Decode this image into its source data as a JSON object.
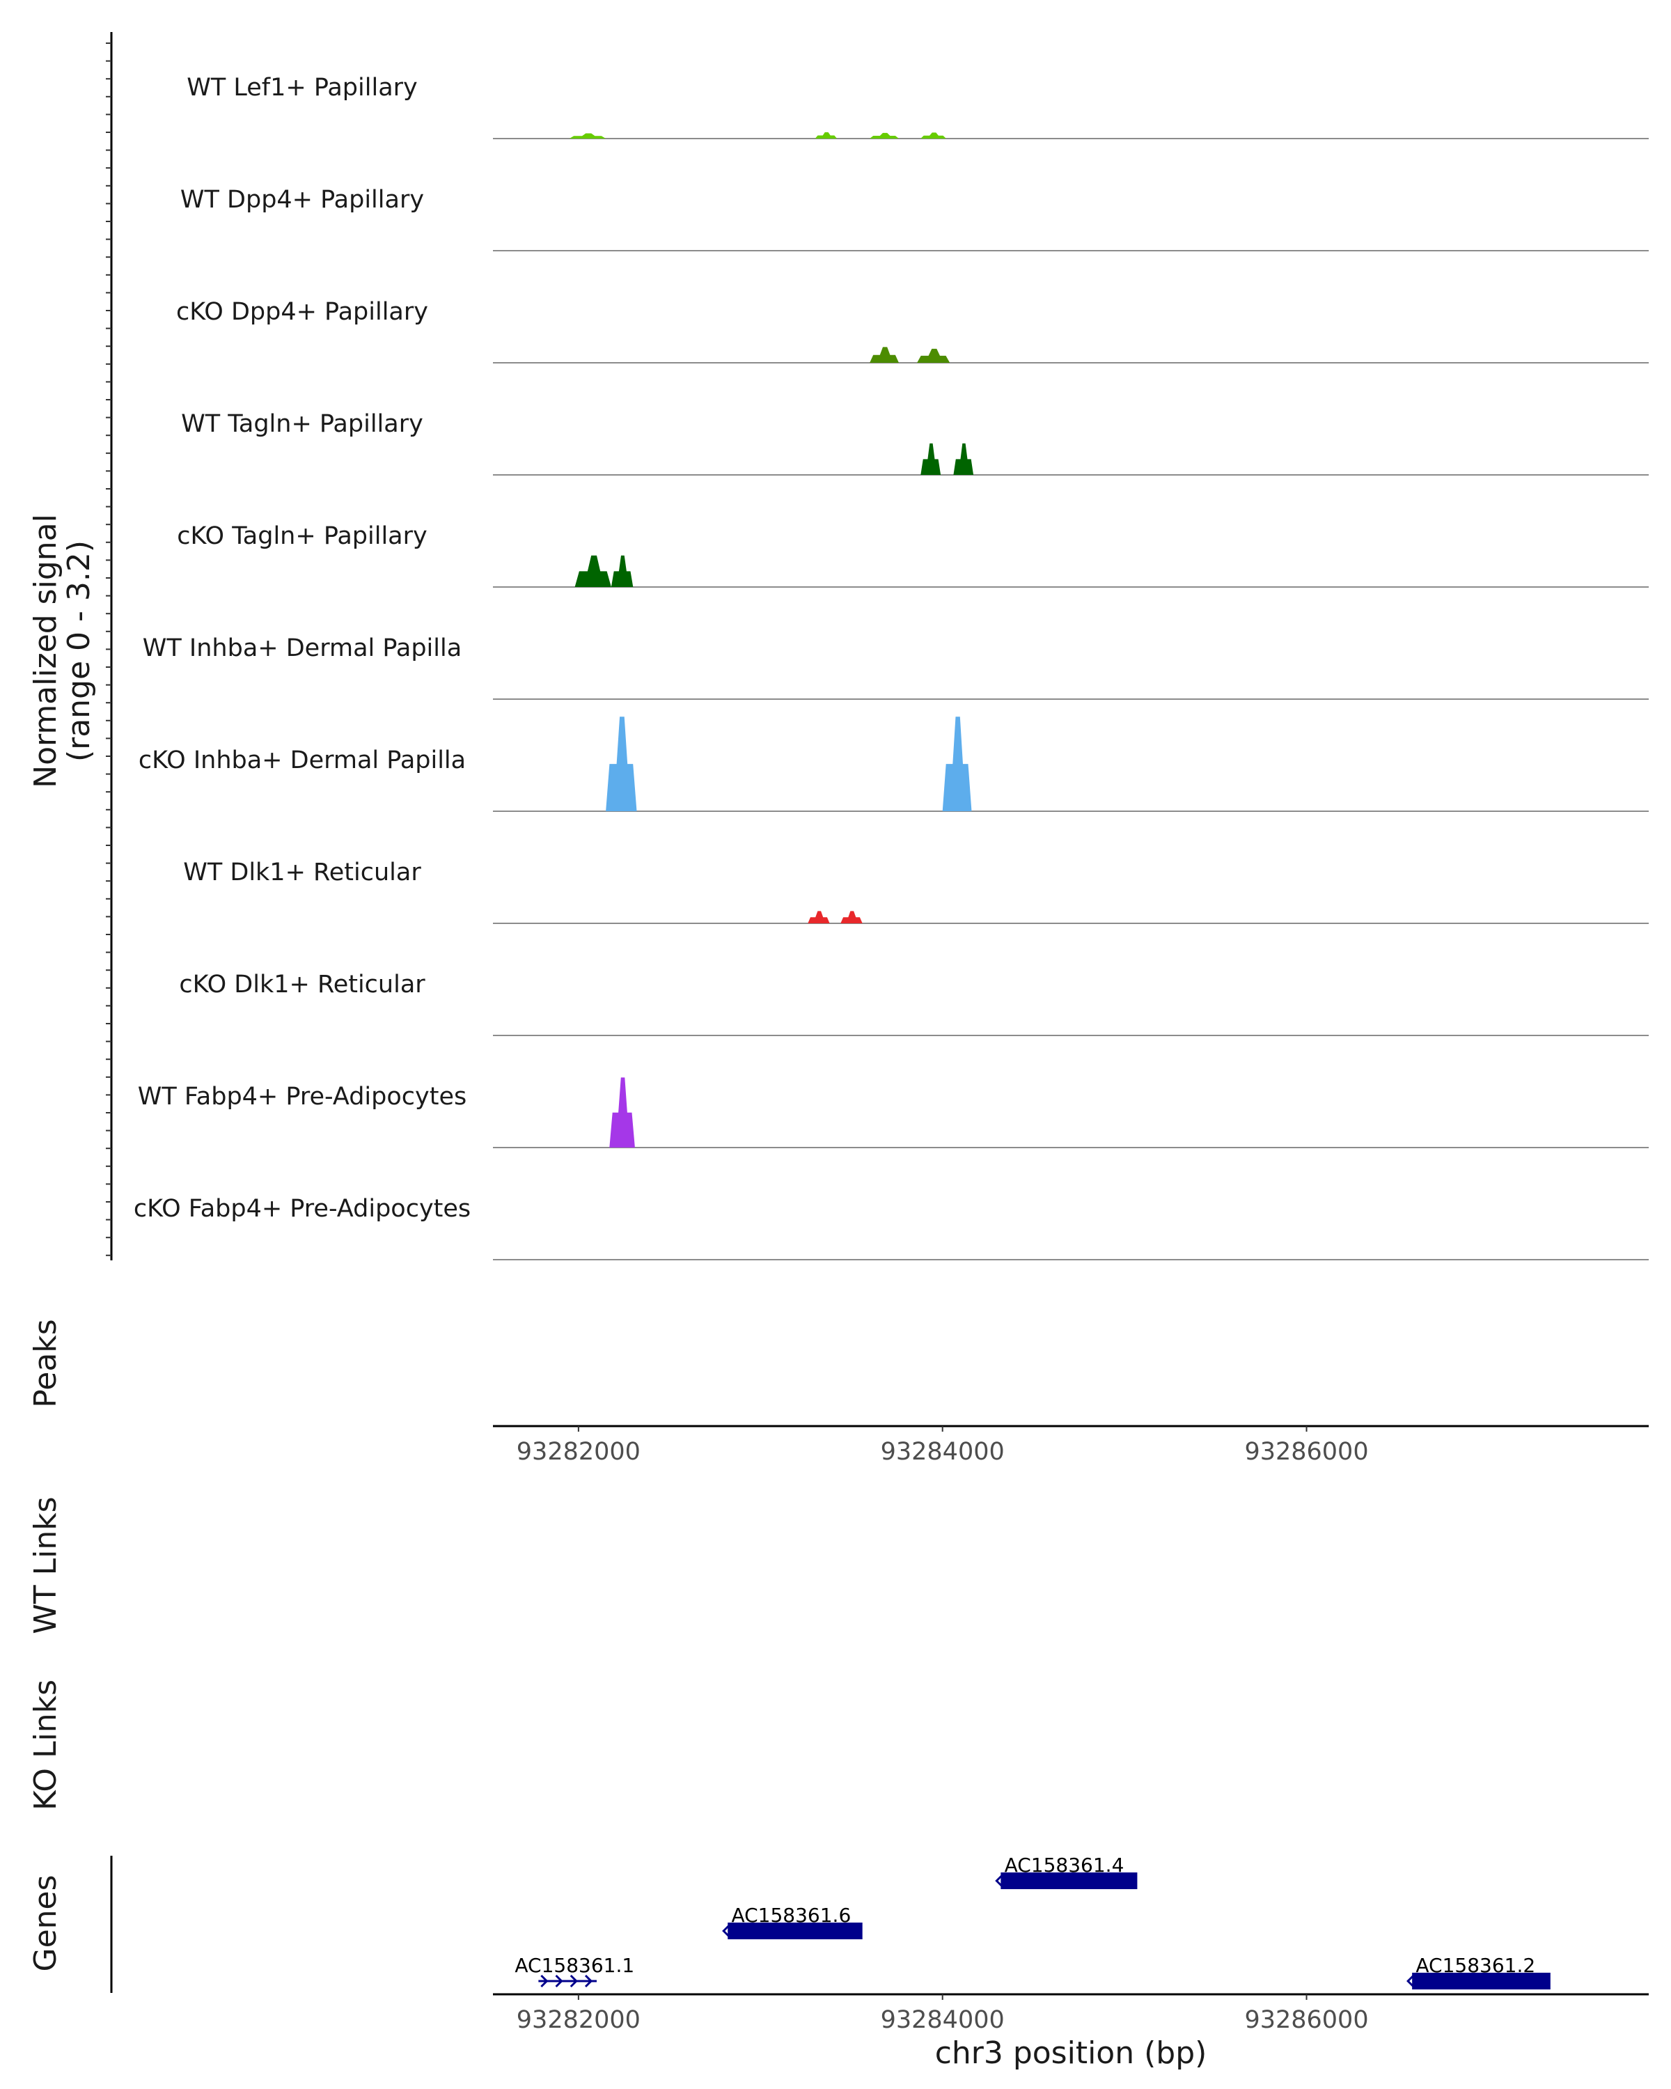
{
  "chart_data": {
    "type": "coverage-tracks",
    "xlabel": "chr3 position (bp)",
    "x_range": [
      93281530,
      93287880
    ],
    "x_ticks": [
      93282000,
      93284000,
      93286000
    ],
    "x_tick_labels": [
      "93282000",
      "93284000",
      "93286000"
    ],
    "y_axis_title_line1": "Normalized signal",
    "y_axis_title_line2": "(range 0 - 3.2)",
    "y_range": [
      0,
      3.2
    ],
    "panel_titles": {
      "peaks": "Peaks",
      "wt_links": "WT Links",
      "ko_links": "KO Links",
      "genes": "Genes"
    },
    "tracks": [
      {
        "name": "WT Lef1+ Papillary",
        "color": "#66CC00",
        "peaks": [
          [
            93281950,
            93282150,
            0.15
          ],
          [
            93283300,
            93283420,
            0.18
          ],
          [
            93283600,
            93283760,
            0.16
          ],
          [
            93283880,
            93284020,
            0.17
          ]
        ]
      },
      {
        "name": "WT Dpp4+ Papillary",
        "color": "#66CC00",
        "peaks": []
      },
      {
        "name": "cKO Dpp4+ Papillary",
        "color": "#4C8C00",
        "peaks": [
          [
            93283600,
            93283760,
            0.45
          ],
          [
            93283860,
            93284040,
            0.4
          ]
        ]
      },
      {
        "name": "WT Tagln+ Papillary",
        "color": "#006400",
        "peaks": [
          [
            93283880,
            93283990,
            0.9
          ],
          [
            93284060,
            93284170,
            0.9
          ]
        ]
      },
      {
        "name": "cKO Tagln+ Papillary",
        "color": "#006400",
        "peaks": [
          [
            93281980,
            93282180,
            0.9
          ],
          [
            93282180,
            93282300,
            0.9
          ]
        ]
      },
      {
        "name": "WT Inhba+ Dermal Papilla",
        "color": "#5DADEC",
        "peaks": []
      },
      {
        "name": "cKO Inhba+ Dermal Papilla",
        "color": "#5DADEC",
        "peaks": [
          [
            93282150,
            93282320,
            2.7
          ],
          [
            93284000,
            93284160,
            2.7
          ]
        ]
      },
      {
        "name": "WT Dlk1+ Reticular",
        "color": "#E8282B",
        "peaks": [
          [
            93283260,
            93283380,
            0.35
          ],
          [
            93283440,
            93283560,
            0.35
          ]
        ]
      },
      {
        "name": "cKO Dlk1+ Reticular",
        "color": "#E8282B",
        "peaks": []
      },
      {
        "name": "WT Fabp4+ Pre-Adipocytes",
        "color": "#A537E8",
        "peaks": [
          [
            93282170,
            93282310,
            2.0
          ]
        ]
      },
      {
        "name": "cKO Fabp4+ Pre-Adipocytes",
        "color": "#A537E8",
        "peaks": []
      }
    ],
    "genes": [
      {
        "name": "AC158361.1",
        "start": 93281780,
        "end": 93282100,
        "row": 0,
        "strand": "+",
        "label_pos": 93281650
      },
      {
        "name": "AC158361.6",
        "start": 93282820,
        "end": 93283560,
        "row": 1,
        "strand": "-",
        "label_pos": 93282840
      },
      {
        "name": "AC158361.4",
        "start": 93284320,
        "end": 93285070,
        "row": 2,
        "strand": "-",
        "label_pos": 93284340
      },
      {
        "name": "AC158361.2",
        "start": 93286580,
        "end": 93287340,
        "row": 0,
        "strand": "-",
        "label_pos": 93286600
      }
    ],
    "gene_color": "#00008B"
  }
}
